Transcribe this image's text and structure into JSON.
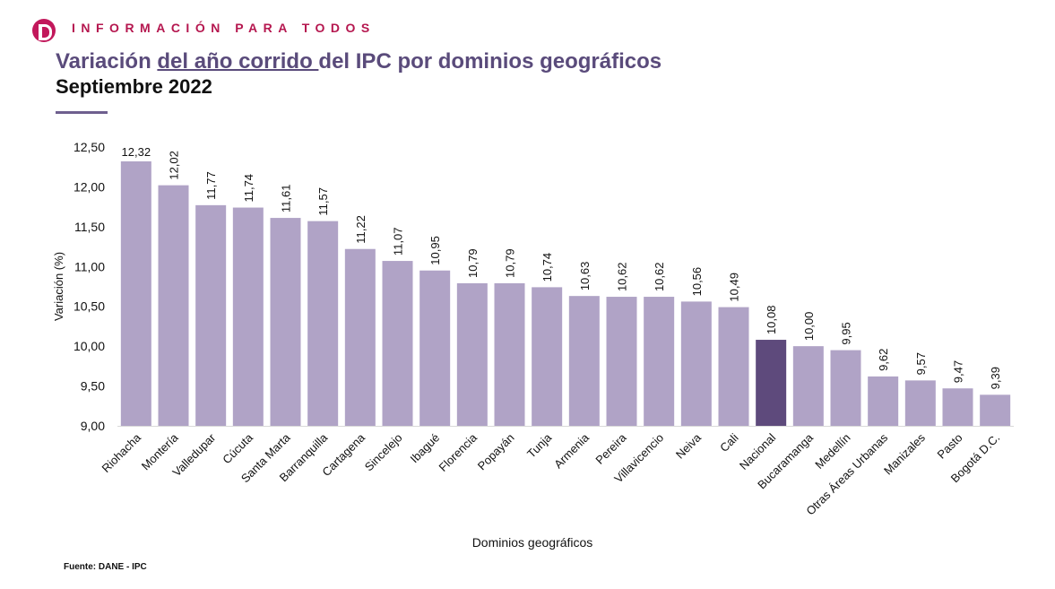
{
  "header": {
    "tagline": "INFORMACIÓN PARA TODOS",
    "title_part1": "Variación ",
    "title_underlined": "del año corrido ",
    "title_part2": "del IPC por dominios geográficos",
    "subtitle": "Septiembre 2022"
  },
  "footer": {
    "source": "Fuente: DANE - IPC"
  },
  "colors": {
    "bar": "#b0a3c6",
    "highlight_bar": "#5e4a7c",
    "brand": "#b5174f",
    "title": "#5a4b7b"
  },
  "chart_data": {
    "type": "bar",
    "xlabel": "Dominios geográficos",
    "ylabel": "Variación (%)",
    "ylim": [
      9.0,
      12.5
    ],
    "ytick_labels": [
      "9,00",
      "9,50",
      "10,00",
      "10,50",
      "11,00",
      "11,50",
      "12,00",
      "12,50"
    ],
    "highlight": "Nacional",
    "grid": false,
    "categories": [
      "Riohacha",
      "Montería",
      "Valledupar",
      "Cúcuta",
      "Santa Marta",
      "Barranquilla",
      "Cartagena",
      "Sincelejo",
      "Ibagué",
      "Florencia",
      "Popayán",
      "Tunja",
      "Armenia",
      "Pereira",
      "Villavicencio",
      "Neiva",
      "Cali",
      "Nacional",
      "Bucaramanga",
      "Medellín",
      "Otras Áreas Urbanas",
      "Manizales",
      "Pasto",
      "Bogotá D.C."
    ],
    "values": [
      12.32,
      12.02,
      11.77,
      11.74,
      11.61,
      11.57,
      11.22,
      11.07,
      10.95,
      10.79,
      10.79,
      10.74,
      10.63,
      10.62,
      10.62,
      10.56,
      10.49,
      10.08,
      10.0,
      9.95,
      9.62,
      9.57,
      9.47,
      9.39
    ],
    "value_labels": [
      "12,32",
      "12,02",
      "11,77",
      "11,74",
      "11,61",
      "11,57",
      "11,22",
      "11,07",
      "10,95",
      "10,79",
      "10,79",
      "10,74",
      "10,63",
      "10,62",
      "10,62",
      "10,56",
      "10,49",
      "10,08",
      "10,00",
      "9,95",
      "9,62",
      "9,57",
      "9,47",
      "9,39"
    ]
  }
}
